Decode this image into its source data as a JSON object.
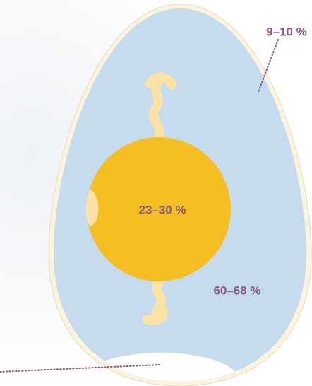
{
  "labels": {
    "shell": "9–10 %",
    "yolk": "23–30 %",
    "albumen": "60–68 %"
  }
}
